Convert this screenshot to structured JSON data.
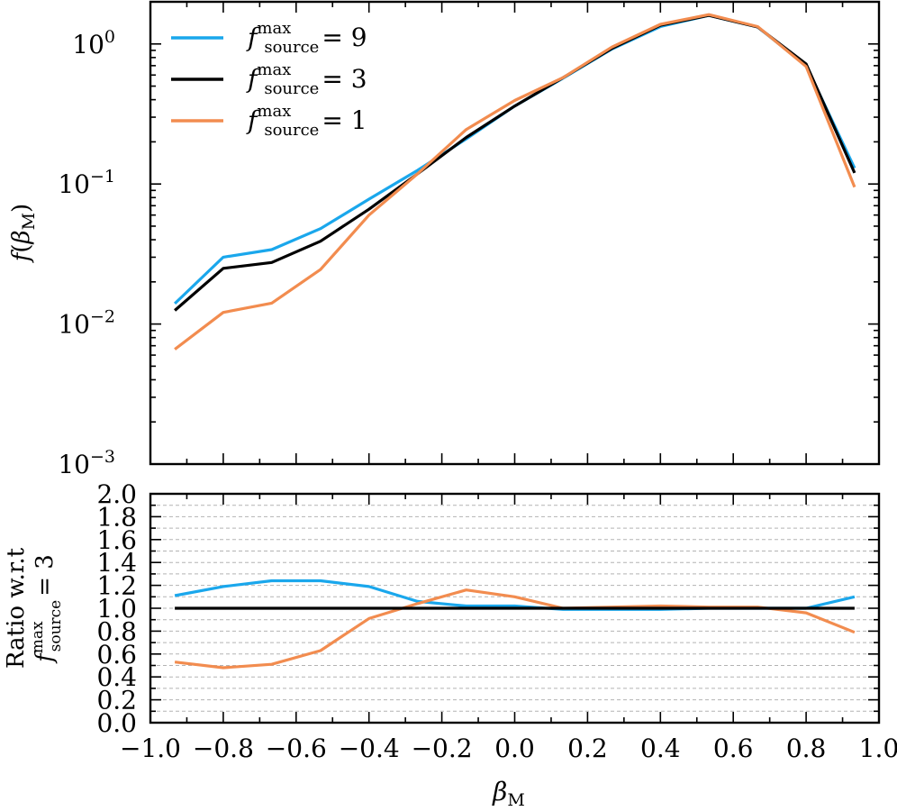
{
  "chart_data": [
    {
      "type": "line",
      "panel": "top",
      "yscale": "log",
      "title": "",
      "xlabel": "",
      "ylabel": "f(βM)",
      "xlim": [
        -1.0,
        1.0
      ],
      "ylim": [
        0.001,
        2.0
      ],
      "x": [
        -0.933,
        -0.8,
        -0.667,
        -0.533,
        -0.4,
        -0.267,
        -0.133,
        0.0,
        0.133,
        0.267,
        0.4,
        0.533,
        0.667,
        0.8,
        0.933
      ],
      "yticks": [
        {
          "value": 0.001,
          "base": "10",
          "exp": "−3"
        },
        {
          "value": 0.01,
          "base": "10",
          "exp": "−2"
        },
        {
          "value": 0.1,
          "base": "10",
          "exp": "−1"
        },
        {
          "value": 1.0,
          "base": "10",
          "exp": "0"
        }
      ],
      "legend": {
        "location": "top-left"
      },
      "series": [
        {
          "name": "f source max = 9",
          "color": "#1aa7ec",
          "values": [
            0.014,
            0.03,
            0.034,
            0.048,
            0.078,
            0.125,
            0.21,
            0.36,
            0.57,
            0.92,
            1.33,
            1.6,
            1.32,
            0.7,
            0.13
          ]
        },
        {
          "name": "f source max = 3",
          "color": "#000000",
          "values": [
            0.0125,
            0.025,
            0.0275,
            0.039,
            0.066,
            0.118,
            0.215,
            0.36,
            0.575,
            0.93,
            1.36,
            1.6,
            1.32,
            0.72,
            0.12
          ]
        },
        {
          "name": "f source max = 1",
          "color": "#f28c4f",
          "values": [
            0.0066,
            0.0121,
            0.0141,
            0.0245,
            0.06,
            0.118,
            0.245,
            0.395,
            0.575,
            0.95,
            1.38,
            1.62,
            1.33,
            0.69,
            0.095
          ]
        }
      ]
    },
    {
      "type": "line",
      "panel": "bottom",
      "yscale": "linear",
      "title": "",
      "xlabel": "βM",
      "ylabel_line1": "Ratio w.r.t",
      "ylabel_line2": "f source max = 3",
      "xlim": [
        -1.0,
        1.0
      ],
      "ylim": [
        0.0,
        2.0
      ],
      "grid": "horizontal dashed",
      "x": [
        -0.933,
        -0.8,
        -0.667,
        -0.533,
        -0.4,
        -0.267,
        -0.133,
        0.0,
        0.133,
        0.267,
        0.4,
        0.533,
        0.667,
        0.8,
        0.933
      ],
      "series": [
        {
          "name": "f source max = 9",
          "color": "#1aa7ec",
          "values": [
            1.11,
            1.19,
            1.24,
            1.24,
            1.19,
            1.06,
            1.02,
            1.02,
            0.99,
            0.99,
            0.99,
            1.0,
            1.0,
            1.0,
            1.1
          ]
        },
        {
          "name": "f source max = 3",
          "color": "#000000",
          "values": [
            1.0,
            1.0,
            1.0,
            1.0,
            1.0,
            1.0,
            1.0,
            1.0,
            1.0,
            1.0,
            1.0,
            1.0,
            1.0,
            1.0,
            1.0
          ]
        },
        {
          "name": "f source max = 1",
          "color": "#f28c4f",
          "values": [
            0.53,
            0.48,
            0.51,
            0.63,
            0.91,
            1.04,
            1.16,
            1.1,
            1.0,
            1.01,
            1.02,
            1.01,
            1.01,
            0.96,
            0.79
          ]
        }
      ]
    }
  ],
  "axis_labels": {
    "top_ylabel_main": "f",
    "top_ylabel_open": "(",
    "top_ylabel_beta": "β",
    "top_ylabel_sub": "M",
    "top_ylabel_close": ")",
    "bottom_ylabel_line1": "Ratio w.r.t",
    "bottom_ylabel_f": "f",
    "bottom_ylabel_sup": "max",
    "bottom_ylabel_sub": "source",
    "bottom_ylabel_eq": "= 3",
    "xlabel_beta": "β",
    "xlabel_sub": "M"
  },
  "x_tick_labels": [
    "−1.0",
    "−0.8",
    "−0.6",
    "−0.4",
    "−0.2",
    "0.0",
    "0.2",
    "0.4",
    "0.6",
    "0.8",
    "1.0"
  ],
  "bottom_y_tick_labels": [
    "0.0",
    "0.2",
    "0.4",
    "0.6",
    "0.8",
    "1.0",
    "1.2",
    "1.4",
    "1.6",
    "1.8",
    "2.0"
  ],
  "legend": [
    {
      "f": "f",
      "sup": "max",
      "sub": "source",
      "eq": "= 9",
      "color": "#1aa7ec"
    },
    {
      "f": "f",
      "sup": "max",
      "sub": "source",
      "eq": "= 3",
      "color": "#000000"
    },
    {
      "f": "f",
      "sup": "max",
      "sub": "source",
      "eq": "= 1",
      "color": "#f28c4f"
    }
  ]
}
